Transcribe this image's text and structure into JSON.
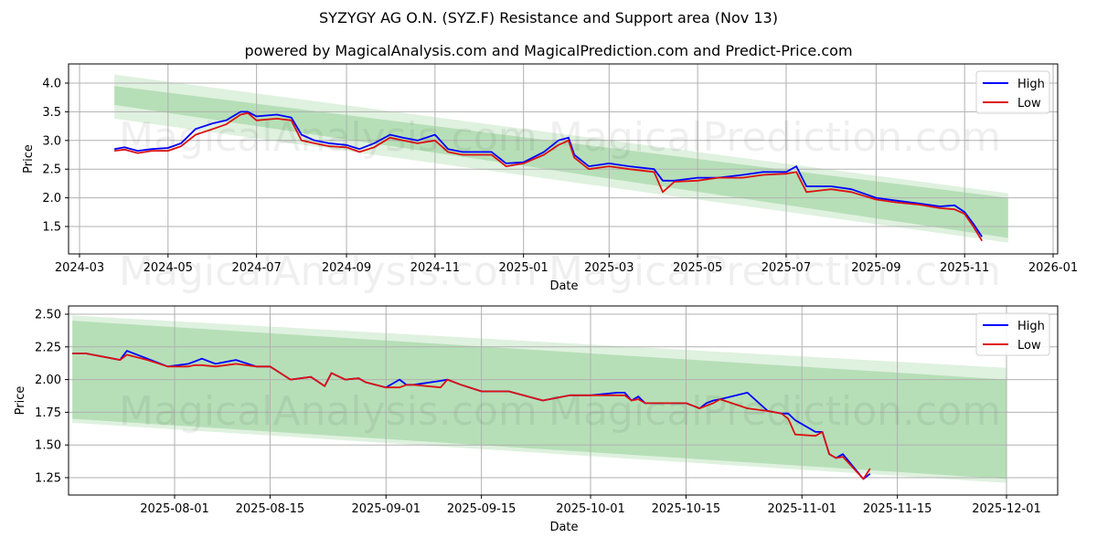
{
  "header": {
    "title": "SYZYGY AG O.N. (SYZ.F) Resistance and Support area (Nov 13)",
    "subtitle": "powered by MagicalAnalysis.com and MagicalPrediction.com and Predict-Price.com"
  },
  "watermarks": [
    "MagicalAnalysis.com",
    "MagicalPrediction.com"
  ],
  "colors": {
    "high": "#0000ff",
    "low": "#dd1111",
    "band": "#4caf50",
    "grid": "#b0b0b0"
  },
  "chart_data": [
    {
      "type": "line",
      "title": "Full history",
      "xlabel": "Date",
      "ylabel": "Price",
      "ylim": [
        1.05,
        4.35
      ],
      "grid": true,
      "legend_position": "upper right",
      "legend": [
        "High",
        "Low"
      ],
      "x_ticks": [
        "2024-03",
        "2024-05",
        "2024-07",
        "2024-09",
        "2024-11",
        "2025-01",
        "2025-03",
        "2025-05",
        "2025-07",
        "2025-09",
        "2025-11",
        "2026-01"
      ],
      "y_ticks": [
        "1.5",
        "2.0",
        "2.5",
        "3.0",
        "3.5",
        "4.0"
      ],
      "band": {
        "x_start": "2024-03-25",
        "x_end": "2025-12-01",
        "upper_start": 4.15,
        "upper_end": 2.08,
        "lower_start": 3.38,
        "lower_end": 1.22,
        "inner_upper_start": 3.95,
        "inner_upper_end": 2.0,
        "inner_lower_start": 3.62,
        "inner_lower_end": 1.3
      },
      "x": [
        "2024-03-25",
        "2024-04-01",
        "2024-04-10",
        "2024-04-20",
        "2024-05-01",
        "2024-05-10",
        "2024-05-20",
        "2024-06-01",
        "2024-06-10",
        "2024-06-20",
        "2024-06-25",
        "2024-07-01",
        "2024-07-15",
        "2024-07-25",
        "2024-08-01",
        "2024-08-10",
        "2024-08-20",
        "2024-09-01",
        "2024-09-10",
        "2024-09-20",
        "2024-10-01",
        "2024-10-10",
        "2024-10-20",
        "2024-11-01",
        "2024-11-10",
        "2024-11-20",
        "2024-12-01",
        "2024-12-10",
        "2024-12-20",
        "2025-01-01",
        "2025-01-15",
        "2025-01-25",
        "2025-02-01",
        "2025-02-05",
        "2025-02-15",
        "2025-03-01",
        "2025-03-15",
        "2025-04-01",
        "2025-04-07",
        "2025-04-15",
        "2025-05-01",
        "2025-05-15",
        "2025-06-01",
        "2025-06-15",
        "2025-07-01",
        "2025-07-08",
        "2025-07-15",
        "2025-08-01",
        "2025-08-15",
        "2025-09-01",
        "2025-09-15",
        "2025-10-01",
        "2025-10-15",
        "2025-10-25",
        "2025-11-01",
        "2025-11-07",
        "2025-11-13"
      ],
      "series": [
        {
          "name": "High",
          "values": [
            2.85,
            2.88,
            2.82,
            2.85,
            2.87,
            2.95,
            3.2,
            3.3,
            3.35,
            3.5,
            3.5,
            3.42,
            3.45,
            3.4,
            3.1,
            3.0,
            2.95,
            2.92,
            2.85,
            2.95,
            3.1,
            3.05,
            3.0,
            3.1,
            2.85,
            2.8,
            2.8,
            2.8,
            2.6,
            2.62,
            2.8,
            3.0,
            3.05,
            2.75,
            2.55,
            2.6,
            2.55,
            2.5,
            2.3,
            2.3,
            2.35,
            2.35,
            2.4,
            2.45,
            2.45,
            2.55,
            2.2,
            2.2,
            2.15,
            2.0,
            1.95,
            1.9,
            1.85,
            1.87,
            1.75,
            1.55,
            1.32
          ]
        },
        {
          "name": "Low",
          "values": [
            2.82,
            2.84,
            2.78,
            2.82,
            2.82,
            2.9,
            3.1,
            3.2,
            3.28,
            3.45,
            3.48,
            3.35,
            3.38,
            3.35,
            3.0,
            2.95,
            2.9,
            2.88,
            2.8,
            2.88,
            3.05,
            3.0,
            2.95,
            3.0,
            2.8,
            2.75,
            2.75,
            2.75,
            2.55,
            2.6,
            2.75,
            2.92,
            3.0,
            2.7,
            2.5,
            2.55,
            2.5,
            2.45,
            2.1,
            2.28,
            2.3,
            2.35,
            2.35,
            2.4,
            2.42,
            2.45,
            2.1,
            2.15,
            2.1,
            1.97,
            1.92,
            1.88,
            1.82,
            1.8,
            1.72,
            1.5,
            1.25
          ]
        }
      ]
    },
    {
      "type": "line",
      "title": "Recent detail",
      "xlabel": "Date",
      "ylabel": "Price",
      "ylim": [
        1.12,
        2.56
      ],
      "grid": true,
      "legend_position": "upper right",
      "legend": [
        "High",
        "Low"
      ],
      "x_ticks": [
        "2025-08-01",
        "2025-08-15",
        "2025-09-01",
        "2025-09-15",
        "2025-10-01",
        "2025-10-15",
        "2025-11-01",
        "2025-11-15",
        "2025-12-01"
      ],
      "y_ticks": [
        "1.25",
        "1.50",
        "1.75",
        "2.00",
        "2.25",
        "2.50"
      ],
      "band": {
        "x_start": "2025-07-17",
        "x_end": "2025-12-01",
        "upper_start": 2.49,
        "upper_end": 2.09,
        "lower_start": 1.67,
        "lower_end": 1.21,
        "inner_upper_start": 2.45,
        "inner_upper_end": 2.0,
        "inner_lower_start": 1.7,
        "inner_lower_end": 1.24
      },
      "x": [
        "2025-07-17",
        "2025-07-19",
        "2025-07-24",
        "2025-07-25",
        "2025-07-28",
        "2025-07-31",
        "2025-08-03",
        "2025-08-04",
        "2025-08-05",
        "2025-08-07",
        "2025-08-10",
        "2025-08-13",
        "2025-08-15",
        "2025-08-18",
        "2025-08-21",
        "2025-08-23",
        "2025-08-24",
        "2025-08-26",
        "2025-08-28",
        "2025-08-29",
        "2025-09-01",
        "2025-09-03",
        "2025-09-04",
        "2025-09-05",
        "2025-09-09",
        "2025-09-10",
        "2025-09-12",
        "2025-09-15",
        "2025-09-16",
        "2025-09-19",
        "2025-09-24",
        "2025-09-28",
        "2025-10-01",
        "2025-10-05",
        "2025-10-06",
        "2025-10-07",
        "2025-10-08",
        "2025-10-09",
        "2025-10-11",
        "2025-10-15",
        "2025-10-17",
        "2025-10-18",
        "2025-10-19",
        "2025-10-20",
        "2025-10-24",
        "2025-10-27",
        "2025-10-29",
        "2025-10-30",
        "2025-10-31",
        "2025-11-03",
        "2025-11-04",
        "2025-11-05",
        "2025-11-06",
        "2025-11-07",
        "2025-11-10",
        "2025-11-11"
      ],
      "series": [
        {
          "name": "High",
          "values": [
            2.2,
            2.2,
            2.15,
            2.22,
            2.16,
            2.1,
            2.12,
            2.14,
            2.16,
            2.12,
            2.15,
            2.1,
            2.1,
            2.0,
            2.02,
            1.95,
            2.05,
            2.0,
            2.01,
            1.98,
            1.94,
            2.0,
            1.96,
            1.96,
            1.99,
            2.0,
            1.96,
            1.91,
            1.91,
            1.91,
            1.84,
            1.88,
            1.88,
            1.9,
            1.9,
            1.84,
            1.87,
            1.82,
            1.82,
            1.82,
            1.78,
            1.82,
            1.84,
            1.85,
            1.9,
            1.76,
            1.74,
            1.74,
            1.69,
            1.6,
            1.6,
            1.43,
            1.4,
            1.43,
            1.24,
            1.28
          ]
        },
        {
          "name": "Low",
          "values": [
            2.2,
            2.2,
            2.15,
            2.19,
            2.15,
            2.1,
            2.1,
            2.11,
            2.11,
            2.1,
            2.12,
            2.1,
            2.1,
            2.0,
            2.02,
            1.95,
            2.05,
            2.0,
            2.01,
            1.98,
            1.94,
            1.94,
            1.96,
            1.96,
            1.94,
            2.0,
            1.96,
            1.91,
            1.91,
            1.91,
            1.84,
            1.88,
            1.88,
            1.88,
            1.88,
            1.84,
            1.85,
            1.82,
            1.82,
            1.82,
            1.78,
            1.8,
            1.82,
            1.85,
            1.78,
            1.76,
            1.74,
            1.7,
            1.58,
            1.57,
            1.6,
            1.43,
            1.4,
            1.41,
            1.24,
            1.32
          ]
        }
      ]
    }
  ]
}
